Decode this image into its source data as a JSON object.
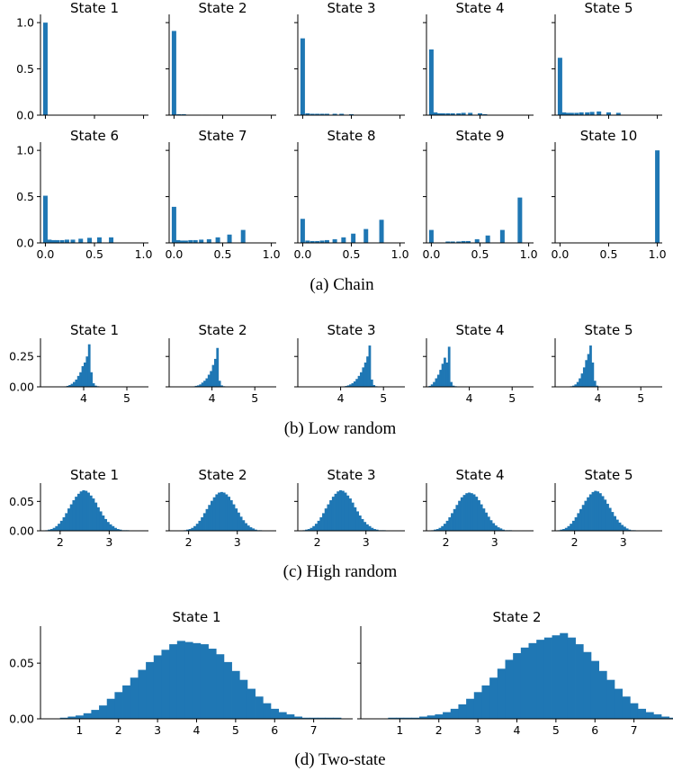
{
  "chart_data": [
    {
      "type": "histogram",
      "group": "a",
      "caption": "(a) Chain",
      "xlim": [
        -0.05,
        1.05
      ],
      "ylim": [
        0,
        1.05
      ],
      "xticks": [
        0.0,
        0.5,
        1.0
      ],
      "xtick_labels": [
        "0.0",
        "0.5",
        "1.0"
      ],
      "yticks": [
        0.0,
        0.5,
        1.0
      ],
      "ytick_labels": [
        "0.0",
        "0.5",
        "1.0"
      ],
      "panels": [
        {
          "title": "State 1",
          "bars": [
            {
              "x": 0.0,
              "y": 1.0
            }
          ]
        },
        {
          "title": "State 2",
          "bars": [
            {
              "x": 0.0,
              "y": 0.91
            },
            {
              "x": 0.05,
              "y": 0.01
            },
            {
              "x": 0.1,
              "y": 0.01
            },
            {
              "x": 0.15,
              "y": 0.005
            },
            {
              "x": 0.2,
              "y": 0.005
            },
            {
              "x": 0.25,
              "y": 0.005
            },
            {
              "x": 0.33,
              "y": 0.005
            },
            {
              "x": 0.5,
              "y": 0.005
            }
          ]
        },
        {
          "title": "State 3",
          "bars": [
            {
              "x": 0.0,
              "y": 0.83
            },
            {
              "x": 0.05,
              "y": 0.02
            },
            {
              "x": 0.1,
              "y": 0.015
            },
            {
              "x": 0.15,
              "y": 0.015
            },
            {
              "x": 0.2,
              "y": 0.015
            },
            {
              "x": 0.25,
              "y": 0.015
            },
            {
              "x": 0.33,
              "y": 0.015
            },
            {
              "x": 0.4,
              "y": 0.015
            },
            {
              "x": 0.5,
              "y": 0.01
            }
          ]
        },
        {
          "title": "State 4",
          "bars": [
            {
              "x": 0.0,
              "y": 0.71
            },
            {
              "x": 0.04,
              "y": 0.03
            },
            {
              "x": 0.08,
              "y": 0.02
            },
            {
              "x": 0.12,
              "y": 0.02
            },
            {
              "x": 0.17,
              "y": 0.02
            },
            {
              "x": 0.22,
              "y": 0.02
            },
            {
              "x": 0.28,
              "y": 0.02
            },
            {
              "x": 0.33,
              "y": 0.025
            },
            {
              "x": 0.4,
              "y": 0.025
            },
            {
              "x": 0.5,
              "y": 0.02
            },
            {
              "x": 0.55,
              "y": 0.01
            }
          ]
        },
        {
          "title": "State 5",
          "bars": [
            {
              "x": 0.0,
              "y": 0.62
            },
            {
              "x": 0.04,
              "y": 0.03
            },
            {
              "x": 0.08,
              "y": 0.025
            },
            {
              "x": 0.12,
              "y": 0.025
            },
            {
              "x": 0.17,
              "y": 0.025
            },
            {
              "x": 0.22,
              "y": 0.03
            },
            {
              "x": 0.28,
              "y": 0.03
            },
            {
              "x": 0.33,
              "y": 0.035
            },
            {
              "x": 0.4,
              "y": 0.04
            },
            {
              "x": 0.5,
              "y": 0.03
            },
            {
              "x": 0.6,
              "y": 0.025
            }
          ]
        },
        {
          "title": "State 6",
          "bars": [
            {
              "x": 0.0,
              "y": 0.51
            },
            {
              "x": 0.04,
              "y": 0.035
            },
            {
              "x": 0.08,
              "y": 0.03
            },
            {
              "x": 0.12,
              "y": 0.03
            },
            {
              "x": 0.17,
              "y": 0.03
            },
            {
              "x": 0.22,
              "y": 0.035
            },
            {
              "x": 0.28,
              "y": 0.035
            },
            {
              "x": 0.36,
              "y": 0.045
            },
            {
              "x": 0.45,
              "y": 0.055
            },
            {
              "x": 0.55,
              "y": 0.06
            },
            {
              "x": 0.67,
              "y": 0.06
            }
          ]
        },
        {
          "title": "State 7",
          "bars": [
            {
              "x": 0.0,
              "y": 0.39
            },
            {
              "x": 0.04,
              "y": 0.03
            },
            {
              "x": 0.08,
              "y": 0.025
            },
            {
              "x": 0.12,
              "y": 0.025
            },
            {
              "x": 0.17,
              "y": 0.03
            },
            {
              "x": 0.22,
              "y": 0.03
            },
            {
              "x": 0.28,
              "y": 0.035
            },
            {
              "x": 0.36,
              "y": 0.04
            },
            {
              "x": 0.45,
              "y": 0.06
            },
            {
              "x": 0.57,
              "y": 0.09
            },
            {
              "x": 0.71,
              "y": 0.14
            }
          ]
        },
        {
          "title": "State 8",
          "bars": [
            {
              "x": 0.0,
              "y": 0.26
            },
            {
              "x": 0.05,
              "y": 0.025
            },
            {
              "x": 0.1,
              "y": 0.02
            },
            {
              "x": 0.15,
              "y": 0.02
            },
            {
              "x": 0.2,
              "y": 0.025
            },
            {
              "x": 0.25,
              "y": 0.03
            },
            {
              "x": 0.33,
              "y": 0.04
            },
            {
              "x": 0.42,
              "y": 0.06
            },
            {
              "x": 0.52,
              "y": 0.1
            },
            {
              "x": 0.65,
              "y": 0.15
            },
            {
              "x": 0.81,
              "y": 0.25
            }
          ]
        },
        {
          "title": "State 9",
          "bars": [
            {
              "x": 0.0,
              "y": 0.14
            },
            {
              "x": 0.17,
              "y": 0.015
            },
            {
              "x": 0.22,
              "y": 0.015
            },
            {
              "x": 0.28,
              "y": 0.015
            },
            {
              "x": 0.33,
              "y": 0.02
            },
            {
              "x": 0.38,
              "y": 0.02
            },
            {
              "x": 0.47,
              "y": 0.04
            },
            {
              "x": 0.58,
              "y": 0.08
            },
            {
              "x": 0.73,
              "y": 0.14
            },
            {
              "x": 0.91,
              "y": 0.49
            }
          ]
        },
        {
          "title": "State 10",
          "bars": [
            {
              "x": 1.0,
              "y": 1.0
            }
          ]
        }
      ]
    },
    {
      "type": "histogram",
      "group": "b",
      "caption": "(b) Low random",
      "xlim": [
        3.0,
        5.5
      ],
      "ylim": [
        0,
        0.37
      ],
      "xticks": [
        4,
        5
      ],
      "xtick_labels": [
        "4",
        "5"
      ],
      "yticks": [
        0.0,
        0.25
      ],
      "ytick_labels": [
        "0.00",
        "0.25"
      ],
      "panels": [
        {
          "title": "State 1",
          "bins": {
            "start": 3.5,
            "width": 0.05,
            "values": [
              0.002,
              0.004,
              0.008,
              0.015,
              0.025,
              0.04,
              0.06,
              0.09,
              0.12,
              0.17,
              0.2,
              0.25,
              0.35,
              0.12,
              0.03,
              0.01,
              0.005,
              0.003,
              0.002,
              0.001,
              0.001,
              0.001,
              0.001,
              0.001,
              0.001
            ]
          }
        },
        {
          "title": "State 2",
          "bins": {
            "start": 3.5,
            "width": 0.05,
            "values": [
              0.002,
              0.004,
              0.008,
              0.012,
              0.02,
              0.035,
              0.05,
              0.07,
              0.1,
              0.13,
              0.18,
              0.23,
              0.32,
              0.05,
              0.012,
              0.005,
              0.003,
              0.002,
              0.001,
              0.001,
              0.001,
              0.001,
              0.001,
              0.001,
              0.001
            ]
          }
        },
        {
          "title": "State 3",
          "bins": {
            "start": 4.0,
            "width": 0.05,
            "values": [
              0.002,
              0.004,
              0.007,
              0.012,
              0.02,
              0.03,
              0.045,
              0.065,
              0.09,
              0.12,
              0.16,
              0.2,
              0.25,
              0.34,
              0.06,
              0.015,
              0.005
            ]
          }
        },
        {
          "title": "State 4",
          "bins": {
            "start": 3.0,
            "width": 0.05,
            "values": [
              0.003,
              0.008,
              0.02,
              0.04,
              0.07,
              0.1,
              0.14,
              0.19,
              0.24,
              0.2,
              0.33,
              0.04,
              0.01,
              0.005,
              0.003,
              0.002,
              0.001,
              0.001,
              0.001,
              0.001,
              0.001,
              0.001
            ]
          }
        },
        {
          "title": "State 5",
          "bins": {
            "start": 3.3,
            "width": 0.05,
            "values": [
              0.002,
              0.005,
              0.01,
              0.02,
              0.04,
              0.07,
              0.11,
              0.16,
              0.22,
              0.27,
              0.34,
              0.2,
              0.05,
              0.01,
              0.004,
              0.002,
              0.001,
              0.001,
              0.001,
              0.001
            ]
          }
        }
      ]
    },
    {
      "type": "histogram",
      "group": "c",
      "caption": "(c) High random",
      "xlim": [
        1.6,
        3.8
      ],
      "ylim": [
        0,
        0.075
      ],
      "xticks": [
        2,
        3
      ],
      "xtick_labels": [
        "2",
        "3"
      ],
      "yticks": [
        0.0,
        0.05
      ],
      "ytick_labels": [
        "0.00",
        "0.05"
      ],
      "panels": [
        {
          "title": "State 1",
          "bins": {
            "start": 1.7,
            "width": 0.05,
            "values": [
              0.001,
              0.002,
              0.003,
              0.005,
              0.008,
              0.012,
              0.017,
              0.023,
              0.03,
              0.038,
              0.045,
              0.052,
              0.058,
              0.063,
              0.067,
              0.069,
              0.068,
              0.065,
              0.06,
              0.055,
              0.048,
              0.04,
              0.033,
              0.026,
              0.02,
              0.015,
              0.011,
              0.008,
              0.005,
              0.003,
              0.002,
              0.001,
              0.001,
              0.001
            ]
          }
        },
        {
          "title": "State 2",
          "bins": {
            "start": 1.9,
            "width": 0.05,
            "values": [
              0.001,
              0.002,
              0.003,
              0.005,
              0.008,
              0.012,
              0.017,
              0.023,
              0.03,
              0.037,
              0.044,
              0.051,
              0.057,
              0.062,
              0.065,
              0.066,
              0.065,
              0.062,
              0.058,
              0.052,
              0.045,
              0.038,
              0.031,
              0.024,
              0.018,
              0.013,
              0.009,
              0.006,
              0.004,
              0.002,
              0.001,
              0.001
            ]
          }
        },
        {
          "title": "State 3",
          "bins": {
            "start": 1.7,
            "width": 0.05,
            "values": [
              0.001,
              0.002,
              0.003,
              0.005,
              0.008,
              0.012,
              0.017,
              0.023,
              0.03,
              0.038,
              0.045,
              0.052,
              0.058,
              0.063,
              0.067,
              0.069,
              0.068,
              0.065,
              0.06,
              0.055,
              0.048,
              0.04,
              0.033,
              0.026,
              0.02,
              0.015,
              0.011,
              0.008,
              0.005,
              0.003,
              0.002,
              0.001,
              0.001,
              0.001
            ]
          }
        },
        {
          "title": "State 4",
          "bins": {
            "start": 1.7,
            "width": 0.05,
            "values": [
              0.001,
              0.002,
              0.003,
              0.005,
              0.008,
              0.012,
              0.017,
              0.023,
              0.03,
              0.037,
              0.044,
              0.051,
              0.057,
              0.061,
              0.064,
              0.065,
              0.064,
              0.062,
              0.058,
              0.052,
              0.045,
              0.038,
              0.031,
              0.024,
              0.018,
              0.013,
              0.009,
              0.006,
              0.004,
              0.002,
              0.001,
              0.001,
              0.001
            ]
          }
        },
        {
          "title": "State 5",
          "bins": {
            "start": 1.65,
            "width": 0.05,
            "values": [
              0.001,
              0.002,
              0.003,
              0.005,
              0.008,
              0.012,
              0.017,
              0.023,
              0.03,
              0.037,
              0.044,
              0.051,
              0.057,
              0.062,
              0.066,
              0.068,
              0.067,
              0.064,
              0.059,
              0.053,
              0.046,
              0.039,
              0.032,
              0.025,
              0.019,
              0.014,
              0.01,
              0.007,
              0.004,
              0.002,
              0.001,
              0.001
            ]
          }
        }
      ]
    },
    {
      "type": "histogram",
      "group": "d",
      "caption": "(d) Two-state",
      "xlim": [
        0.0,
        8.0
      ],
      "ylim": [
        0,
        0.08
      ],
      "xticks": [
        1,
        2,
        3,
        4,
        5,
        6,
        7
      ],
      "xtick_labels": [
        "1",
        "2",
        "3",
        "4",
        "5",
        "6",
        "7"
      ],
      "yticks": [
        0.0,
        0.05
      ],
      "ytick_labels": [
        "0.00",
        "0.05"
      ],
      "panels": [
        {
          "title": "State 1",
          "bins": {
            "start": 0.5,
            "width": 0.2,
            "values": [
              0.001,
              0.002,
              0.003,
              0.005,
              0.008,
              0.012,
              0.018,
              0.024,
              0.03,
              0.037,
              0.044,
              0.051,
              0.057,
              0.062,
              0.067,
              0.07,
              0.069,
              0.068,
              0.067,
              0.063,
              0.058,
              0.051,
              0.043,
              0.035,
              0.027,
              0.02,
              0.014,
              0.009,
              0.006,
              0.004,
              0.002,
              0.001,
              0.001,
              0.001,
              0.001,
              0.001
            ]
          }
        },
        {
          "title": "State 2",
          "bins": {
            "start": 0.7,
            "width": 0.2,
            "values": [
              0.001,
              0.001,
              0.001,
              0.001,
              0.002,
              0.003,
              0.004,
              0.006,
              0.009,
              0.013,
              0.018,
              0.024,
              0.03,
              0.037,
              0.045,
              0.053,
              0.059,
              0.064,
              0.068,
              0.071,
              0.073,
              0.075,
              0.077,
              0.073,
              0.067,
              0.06,
              0.052,
              0.043,
              0.035,
              0.027,
              0.02,
              0.014,
              0.009,
              0.006,
              0.004,
              0.002,
              0.001,
              0.001,
              0.001,
              0.001,
              0.001
            ]
          }
        }
      ]
    }
  ]
}
